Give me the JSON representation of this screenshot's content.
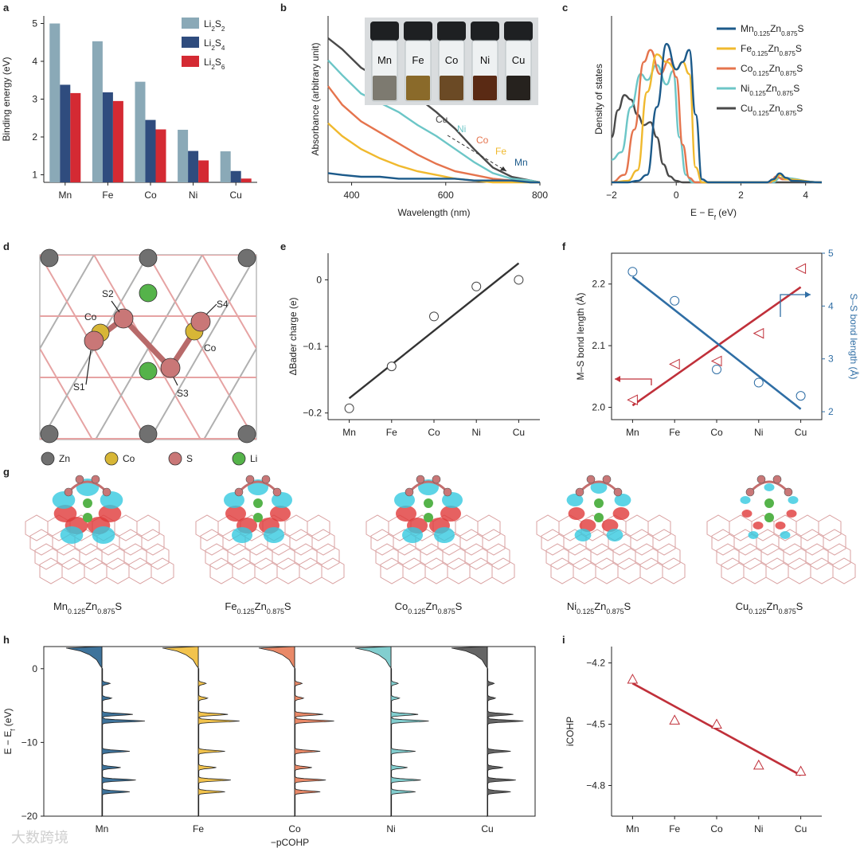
{
  "figure": {
    "panel_labels": [
      "a",
      "b",
      "c",
      "d",
      "e",
      "f",
      "g",
      "h",
      "i"
    ],
    "colors": {
      "Mn": "#1c5a8a",
      "Fe": "#f0b92e",
      "Co": "#e5744d",
      "Ni": "#6cc6c7",
      "Cu": "#4a4a4a",
      "Li2S2": "#8aa9b7",
      "Li2S4": "#2f4c7e",
      "Li2S6": "#d42a33",
      "bader": "#333333",
      "ms": "#c0303a",
      "ss": "#2f6ea5",
      "icohp": "#c0303a"
    }
  },
  "chart_data": [
    {
      "panel": "a",
      "type": "bar",
      "ylabel": "Binding energy (eV)",
      "ylim": [
        0.8,
        5.2
      ],
      "yticks": [
        "1",
        "2",
        "3",
        "4",
        "5"
      ],
      "categories": [
        "Mn",
        "Fe",
        "Co",
        "Ni",
        "Cu"
      ],
      "series": [
        {
          "name": "Li2S2",
          "label_main": "Li",
          "label_sub": "2",
          "label_main2": "S",
          "label_sub2": "2",
          "color": "#8aa9b7",
          "values": [
            5.0,
            4.53,
            3.46,
            2.19,
            1.62
          ]
        },
        {
          "name": "Li2S4",
          "label_main": "Li",
          "label_sub": "2",
          "label_main2": "S",
          "label_sub2": "4",
          "color": "#2f4c7e",
          "values": [
            3.38,
            3.18,
            2.45,
            1.63,
            1.1
          ]
        },
        {
          "name": "Li2S6",
          "label_main": "Li",
          "label_sub": "2",
          "label_main2": "S",
          "label_sub2": "6",
          "color": "#d42a33",
          "values": [
            3.16,
            2.95,
            2.2,
            1.38,
            0.9
          ]
        }
      ]
    },
    {
      "panel": "b",
      "type": "line",
      "xlabel": "Wavelength (nm)",
      "ylabel": "Absorbance (arbitrary unit)",
      "xlim": [
        350,
        800
      ],
      "xticks": [
        "400",
        "600",
        "800"
      ],
      "inset_vials": [
        "Mn",
        "Fe",
        "Co",
        "Ni",
        "Cu"
      ],
      "annotations": [
        "Cu",
        "Ni",
        "Co",
        "Fe",
        "Mn"
      ],
      "series": [
        {
          "name": "Cu",
          "color": "#4a4a4a",
          "x": [
            350,
            380,
            420,
            460,
            500,
            540,
            580,
            620,
            660,
            700,
            740,
            780,
            800
          ],
          "y": [
            0.78,
            0.72,
            0.62,
            0.56,
            0.53,
            0.46,
            0.38,
            0.29,
            0.18,
            0.08,
            0.03,
            0.01,
            0.0
          ]
        },
        {
          "name": "Ni",
          "color": "#6cc6c7",
          "x": [
            350,
            380,
            420,
            460,
            500,
            540,
            580,
            620,
            660,
            700,
            740,
            780,
            800
          ],
          "y": [
            0.66,
            0.58,
            0.48,
            0.43,
            0.38,
            0.31,
            0.25,
            0.18,
            0.11,
            0.05,
            0.02,
            0.01,
            0.0
          ]
        },
        {
          "name": "Co",
          "color": "#e5744d",
          "x": [
            350,
            380,
            420,
            460,
            500,
            540,
            580,
            620,
            660,
            700,
            740,
            780,
            800
          ],
          "y": [
            0.52,
            0.42,
            0.33,
            0.27,
            0.21,
            0.15,
            0.1,
            0.06,
            0.04,
            0.02,
            0.01,
            0.0,
            0.0
          ]
        },
        {
          "name": "Fe",
          "color": "#f0b92e",
          "x": [
            350,
            380,
            420,
            460,
            500,
            540,
            580,
            620,
            660,
            700,
            740,
            780,
            800
          ],
          "y": [
            0.32,
            0.25,
            0.18,
            0.13,
            0.09,
            0.06,
            0.04,
            0.02,
            0.01,
            0.0,
            0.0,
            0.0,
            0.0
          ]
        },
        {
          "name": "Mn",
          "color": "#1c5a8a",
          "x": [
            350,
            380,
            420,
            460,
            500,
            540,
            580,
            620,
            660,
            700,
            740,
            780,
            800
          ],
          "y": [
            0.05,
            0.04,
            0.03,
            0.03,
            0.02,
            0.02,
            0.02,
            0.02,
            0.01,
            0.01,
            0.01,
            0.0,
            0.0
          ]
        }
      ]
    },
    {
      "panel": "c",
      "type": "line",
      "xlabel": "E − Ef (eV)",
      "ylabel": "Density of states",
      "xlim": [
        -2,
        4.5
      ],
      "xticks": [
        "−2",
        "0",
        "2",
        "4"
      ],
      "series": [
        {
          "name": "Mn",
          "label": "Mn0.125Zn0.875S",
          "color": "#1c5a8a",
          "x": [
            -2,
            -1.5,
            -1.2,
            -0.9,
            -0.6,
            -0.3,
            0.0,
            0.2,
            0.4,
            0.6,
            0.8,
            1.0,
            2.8,
            3.0,
            3.2,
            3.4,
            3.6,
            4.5
          ],
          "y": [
            0,
            0,
            0.01,
            0.05,
            0.5,
            0.92,
            0.75,
            0.8,
            0.88,
            0.45,
            0.02,
            0,
            0,
            0.02,
            0.06,
            0.03,
            0.01,
            0
          ]
        },
        {
          "name": "Fe",
          "label": "Fe0.125Zn0.875S",
          "color": "#f0b92e",
          "x": [
            -2,
            -1.5,
            -1.2,
            -0.9,
            -0.6,
            -0.3,
            0.0,
            0.2,
            0.4,
            0.6,
            0.8,
            2.8,
            3.0,
            3.2,
            3.4,
            4.5
          ],
          "y": [
            0,
            0.01,
            0.08,
            0.6,
            0.85,
            0.8,
            0.75,
            0.8,
            0.72,
            0.1,
            0,
            0,
            0.01,
            0.05,
            0.02,
            0
          ]
        },
        {
          "name": "Co",
          "label": "Co0.125Zn0.875S",
          "color": "#e5744d",
          "x": [
            -2,
            -1.6,
            -1.3,
            -1.0,
            -0.8,
            -0.5,
            -0.2,
            0.0,
            0.2,
            0.4,
            0.6,
            2.9,
            3.1,
            3.3,
            4.5
          ],
          "y": [
            0,
            0.05,
            0.35,
            0.8,
            0.88,
            0.72,
            0.82,
            0.7,
            0.25,
            0.03,
            0,
            0,
            0.04,
            0.02,
            0
          ]
        },
        {
          "name": "Ni",
          "label": "Ni0.125Zn0.875S",
          "color": "#6cc6c7",
          "x": [
            -2,
            -1.7,
            -1.4,
            -1.1,
            -0.9,
            -0.6,
            -0.3,
            -0.1,
            0.1,
            0.3,
            0.5,
            3.0,
            3.2,
            4.5
          ],
          "y": [
            0.15,
            0.2,
            0.5,
            0.72,
            0.68,
            0.78,
            0.65,
            0.74,
            0.3,
            0.05,
            0,
            0,
            0.03,
            0
          ]
        },
        {
          "name": "Cu",
          "label": "Cu0.125Zn0.875S",
          "color": "#4a4a4a",
          "x": [
            -2,
            -1.8,
            -1.6,
            -1.4,
            -1.2,
            -1.0,
            -0.8,
            -0.6,
            -0.4,
            -0.2,
            0.0,
            0.2,
            0.4,
            4.5
          ],
          "y": [
            0.3,
            0.48,
            0.58,
            0.55,
            0.45,
            0.38,
            0.4,
            0.3,
            0.12,
            0.04,
            0.01,
            0,
            0,
            0
          ]
        }
      ]
    },
    {
      "panel": "e",
      "type": "scatter",
      "ylabel": "ΔBader charge (e)",
      "ylim": [
        -0.21,
        0.04
      ],
      "yticks": [
        "0",
        "−0.1",
        "−0.2"
      ],
      "categories": [
        "Mn",
        "Fe",
        "Co",
        "Ni",
        "Cu"
      ],
      "values": [
        -0.193,
        -0.13,
        -0.055,
        -0.01,
        0.0
      ],
      "fit": [
        -0.178,
        0.025
      ]
    },
    {
      "panel": "f",
      "type": "scatter",
      "ylabel": "M–S bond length (Å)",
      "y2label": "S–S bond length (Å)",
      "ylim": [
        1.98,
        2.25
      ],
      "y2lim": [
        1.85,
        5.0
      ],
      "yticks": [
        "2.0",
        "2.1",
        "2.2"
      ],
      "y2ticks": [
        "2",
        "3",
        "4",
        "5"
      ],
      "categories": [
        "Mn",
        "Fe",
        "Co",
        "Ni",
        "Cu"
      ],
      "series": [
        {
          "name": "M–S",
          "axis": "left",
          "color": "#c0303a",
          "values": [
            2.012,
            2.07,
            2.075,
            2.12,
            2.225
          ],
          "fit": [
            2.003,
            2.195
          ]
        },
        {
          "name": "S–S",
          "axis": "right",
          "color": "#2f6ea5",
          "values": [
            4.65,
            4.1,
            2.8,
            2.55,
            2.3
          ],
          "fit": [
            4.55,
            2.05
          ]
        }
      ]
    },
    {
      "panel": "h",
      "type": "area",
      "xlabel": "−pCOHP",
      "ylabel": "E − Ef (eV)",
      "ylim": [
        -20,
        3
      ],
      "yticks": [
        "0",
        "−10",
        "−20"
      ],
      "categories": [
        "Mn",
        "Fe",
        "Co",
        "Ni",
        "Cu"
      ]
    },
    {
      "panel": "i",
      "type": "scatter",
      "ylabel": "iCOHP",
      "ylim": [
        -4.95,
        -4.12
      ],
      "yticks": [
        "−4.2",
        "−4.5",
        "−4.8"
      ],
      "categories": [
        "Mn",
        "Fe",
        "Co",
        "Ni",
        "Cu"
      ],
      "values": [
        -4.28,
        -4.48,
        -4.5,
        -4.7,
        -4.73
      ],
      "fit": [
        -4.3,
        -4.75
      ]
    }
  ],
  "structure_d": {
    "atom_labels": [
      "S1",
      "S2",
      "S3",
      "S4",
      "Co",
      "Co"
    ],
    "legend": [
      "Zn",
      "Co",
      "S",
      "Li"
    ],
    "legend_colors": [
      "#707070",
      "#d7b636",
      "#c97777",
      "#55b34a"
    ]
  },
  "panel_g": {
    "labels": [
      {
        "el": "Mn",
        "a": "0.125",
        "b": "Zn",
        "c": "0.875",
        "d": "S"
      },
      {
        "el": "Fe",
        "a": "0.125",
        "b": "Zn",
        "c": "0.875",
        "d": "S"
      },
      {
        "el": "Co",
        "a": "0.125",
        "b": "Zn",
        "c": "0.875",
        "d": "S"
      },
      {
        "el": "Ni",
        "a": "0.125",
        "b": "Zn",
        "c": "0.875",
        "d": "S"
      },
      {
        "el": "Cu",
        "a": "0.125",
        "b": "Zn",
        "c": "0.875",
        "d": "S"
      }
    ]
  },
  "watermark": "大数跨境"
}
